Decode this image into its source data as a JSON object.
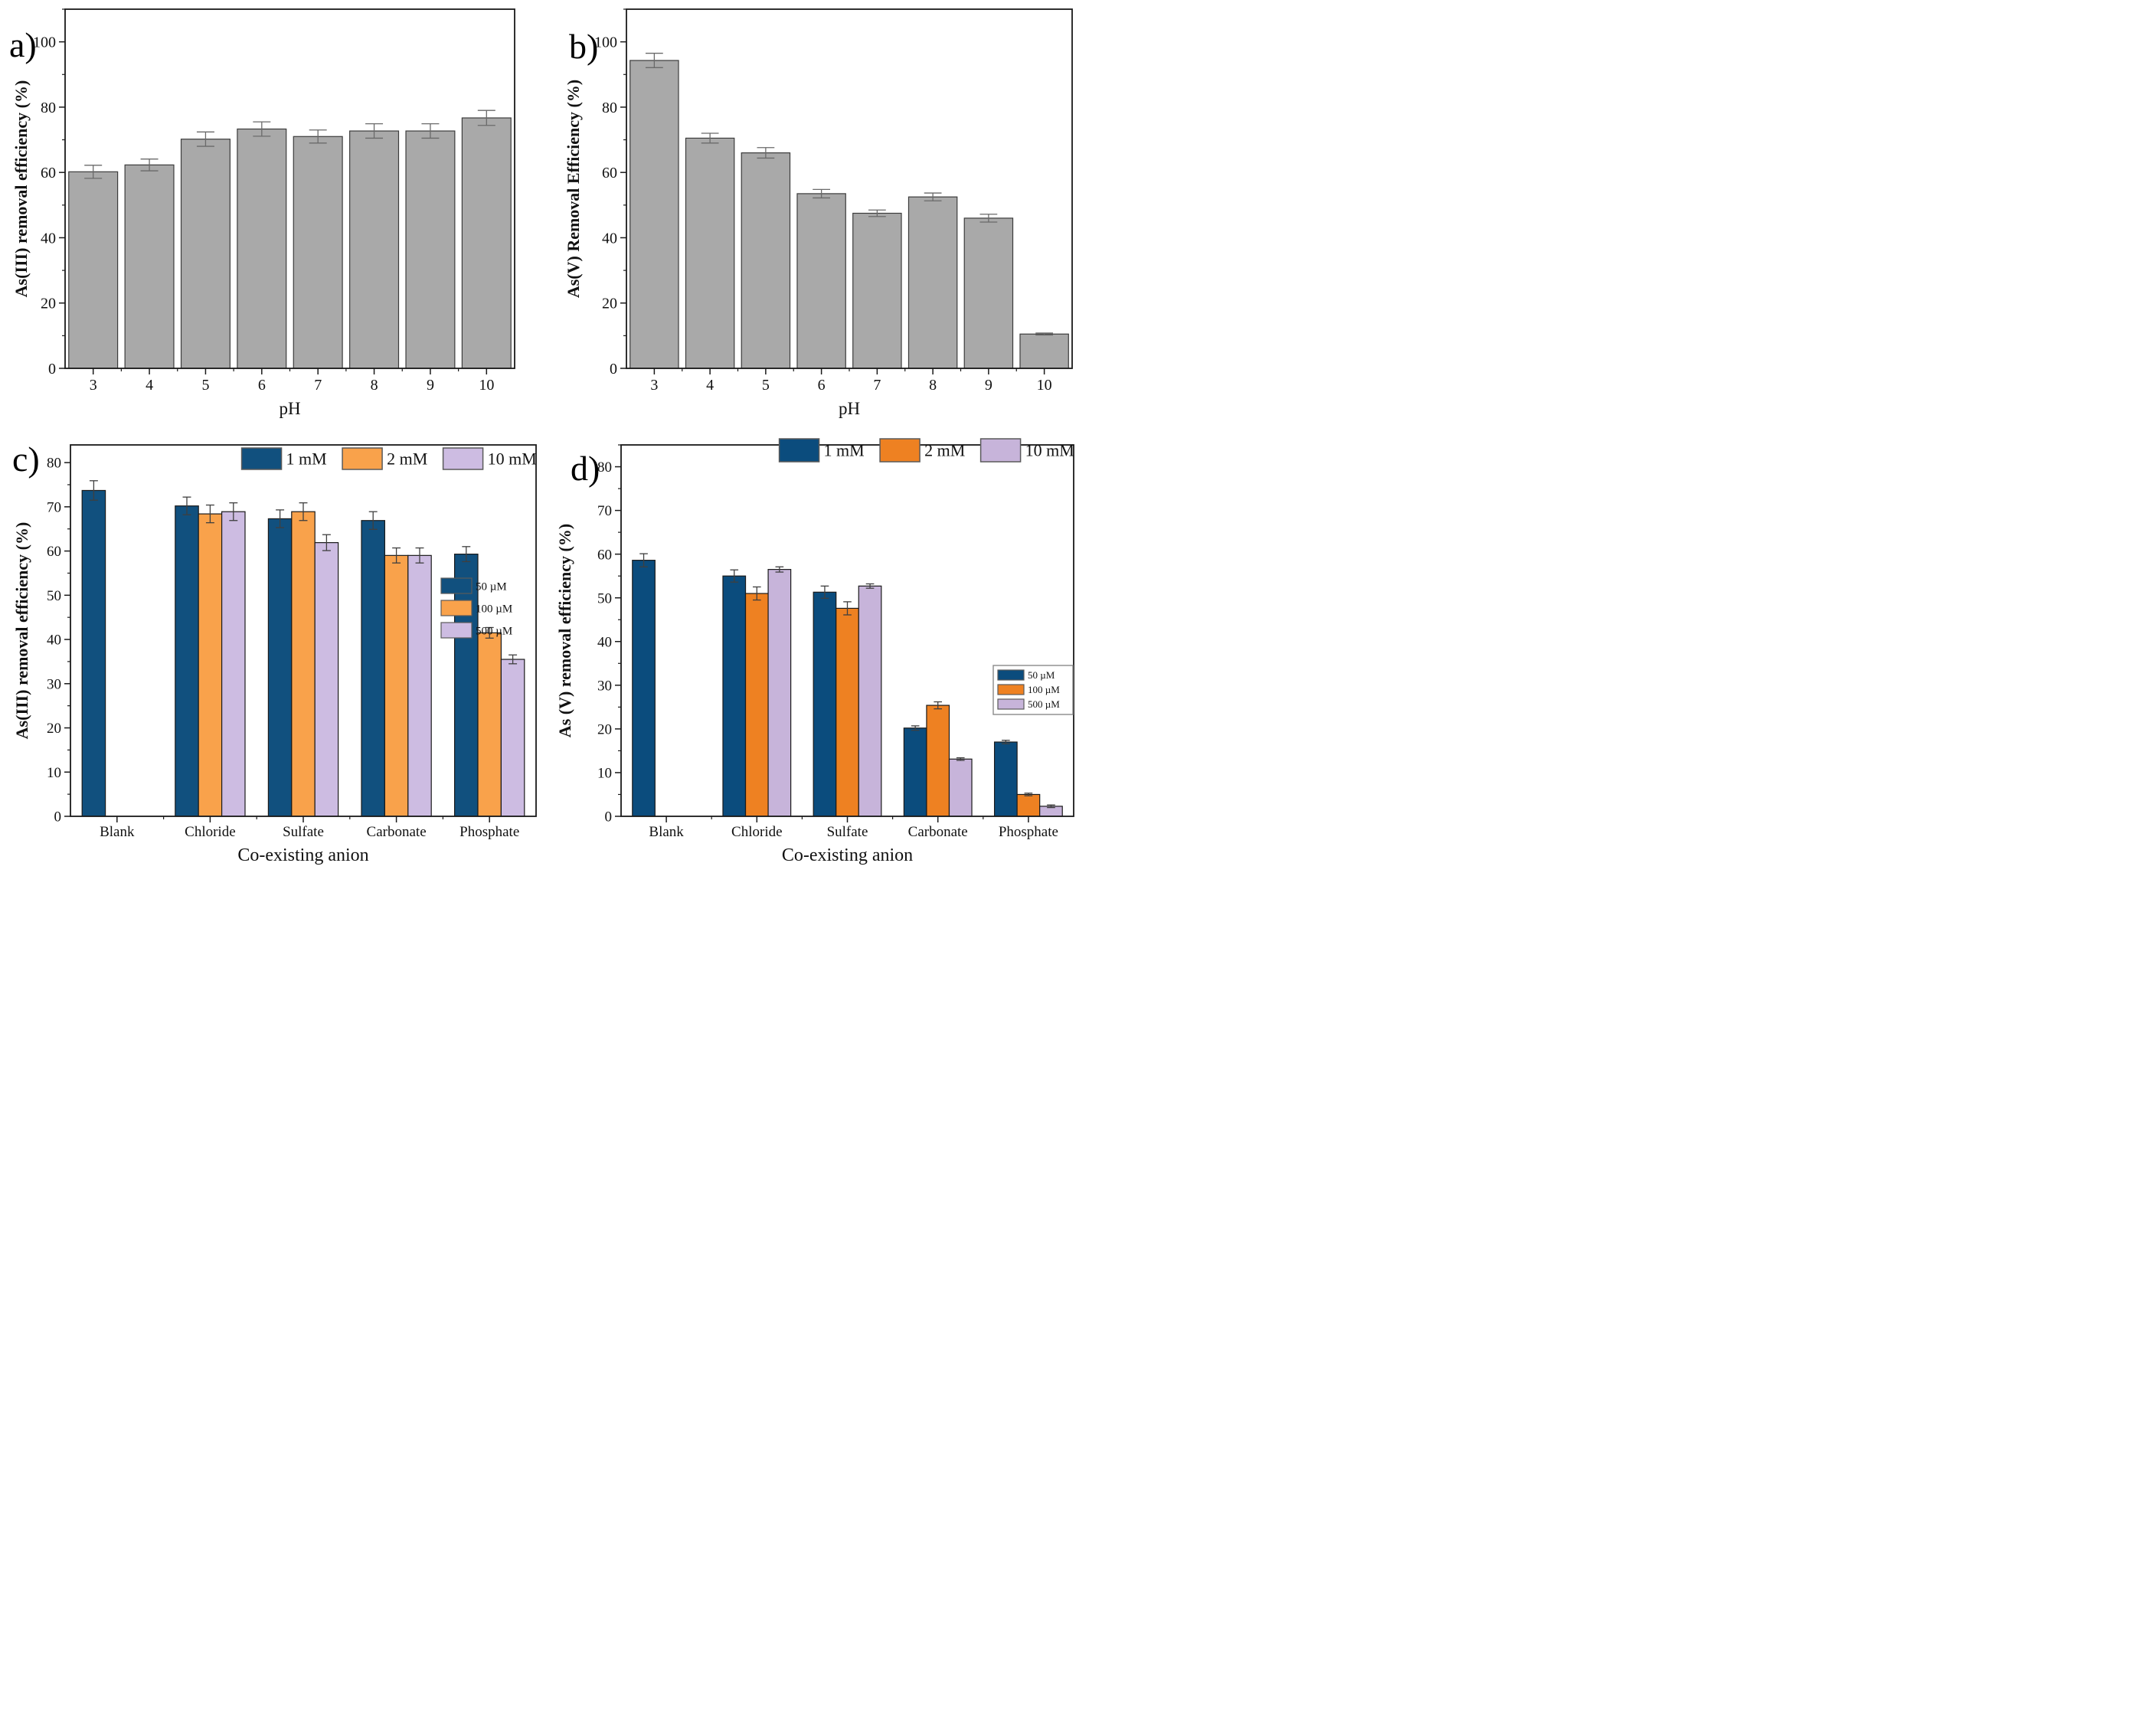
{
  "figure": {
    "description": "Four-panel bar chart figure of arsenic removal efficiency",
    "panel_labels": [
      "a)",
      "b)",
      "c)",
      "d)"
    ]
  },
  "chart_data": [
    {
      "id": "a",
      "panel_label": "a)",
      "type": "bar",
      "categories": [
        "3",
        "4",
        "5",
        "6",
        "7",
        "8",
        "9",
        "10"
      ],
      "values": [
        60.2,
        62.3,
        70.2,
        73.3,
        71.0,
        72.7,
        72.7,
        76.7
      ],
      "errors": [
        2.0,
        1.8,
        2.2,
        2.2,
        2.0,
        2.2,
        2.2,
        2.3
      ],
      "title": "",
      "xlabel": "pH",
      "ylabel": "As(III) removal efficiency (%)",
      "ylim": [
        0,
        110
      ],
      "yticks": [
        0,
        20,
        40,
        60,
        80,
        100
      ],
      "ytick_step": 20,
      "yminor_step": 10,
      "grid": false,
      "bar_color": "#a9a9a9",
      "bar_edge": "#3c3c3c",
      "error_color": "#6a6a6a",
      "legend": null
    },
    {
      "id": "b",
      "panel_label": "b)",
      "type": "bar",
      "categories": [
        "3",
        "4",
        "5",
        "6",
        "7",
        "8",
        "9",
        "10"
      ],
      "values": [
        94.3,
        70.5,
        66.0,
        53.5,
        47.5,
        52.5,
        46.0,
        10.5
      ],
      "errors": [
        2.2,
        1.5,
        1.6,
        1.3,
        1.0,
        1.2,
        1.2,
        0.3
      ],
      "title": "",
      "xlabel": "pH",
      "ylabel": "As(V) Removal Efficiency (%)",
      "ylim": [
        0,
        110
      ],
      "yticks": [
        0,
        20,
        40,
        60,
        80,
        100
      ],
      "ytick_step": 20,
      "yminor_step": 10,
      "grid": false,
      "bar_color": "#a9a9a9",
      "bar_edge": "#3c3c3c",
      "error_color": "#6a6a6a",
      "legend": null
    },
    {
      "id": "c",
      "panel_label": "c)",
      "type": "grouped-bar",
      "categories": [
        "Blank",
        "Chloride",
        "Sulfate",
        "Carbonate",
        "Phosphate"
      ],
      "series": [
        {
          "name": "1 mM",
          "color": "#11507e",
          "values": [
            73.7,
            70.2,
            67.3,
            66.9,
            59.3
          ],
          "errors": [
            2.2,
            2.0,
            2.0,
            2.0,
            1.7
          ]
        },
        {
          "name": "2 mM",
          "color": "#f9a24b",
          "values": [
            null,
            68.4,
            68.9,
            59.0,
            41.5
          ],
          "errors": [
            null,
            2.0,
            2.0,
            1.7,
            1.2
          ]
        },
        {
          "name": "10 mM",
          "color": "#cdbce2",
          "values": [
            null,
            68.9,
            61.9,
            59.0,
            35.5
          ],
          "errors": [
            null,
            2.0,
            1.8,
            1.7,
            1.0
          ]
        }
      ],
      "title": "",
      "xlabel": "Co-existing anion",
      "ylabel": "As(III) removal efficiency (%)",
      "ylim": [
        0,
        84
      ],
      "yticks": [
        0,
        10,
        20,
        30,
        40,
        50,
        60,
        70,
        80
      ],
      "ytick_step": 10,
      "yminor_step": 5,
      "grid": false,
      "bar_edge": "#1a1a1a",
      "error_color": "#3f3f3f",
      "legend": {
        "position": "top",
        "labels": [
          "1 mM",
          "2 mM",
          "10 mM"
        ]
      },
      "legend2": {
        "boxed": false,
        "labels": [
          "50 µM",
          "100 µM",
          "500 µM"
        ]
      }
    },
    {
      "id": "d",
      "panel_label": "d)",
      "type": "grouped-bar",
      "categories": [
        "Blank",
        "Chloride",
        "Sulfate",
        "Carbonate",
        "Phosphate"
      ],
      "series": [
        {
          "name": "1 mM",
          "color": "#0b4c7d",
          "values": [
            58.6,
            55.0,
            51.3,
            20.2,
            17.0
          ],
          "errors": [
            1.5,
            1.4,
            1.4,
            0.5,
            0.4
          ]
        },
        {
          "name": "2 mM",
          "color": "#ee8122",
          "values": [
            null,
            51.0,
            47.6,
            25.4,
            5.0
          ],
          "errors": [
            null,
            1.5,
            1.5,
            0.8,
            0.3
          ]
        },
        {
          "name": "10 mM",
          "color": "#c7b4da",
          "values": [
            null,
            56.5,
            52.7,
            13.1,
            2.3
          ],
          "errors": [
            null,
            0.6,
            0.5,
            0.3,
            0.3
          ]
        }
      ],
      "title": "",
      "xlabel": "Co-existing anion",
      "ylabel": "As (V) removal efficiency (%)",
      "ylim": [
        0,
        85
      ],
      "yticks": [
        0,
        10,
        20,
        30,
        40,
        50,
        60,
        70,
        80
      ],
      "ytick_step": 10,
      "yminor_step": 5,
      "grid": false,
      "bar_edge": "#1a1a1a",
      "error_color": "#3f3f3f",
      "legend": {
        "position": "top",
        "labels": [
          "1 mM",
          "2 mM",
          "10 mM"
        ]
      },
      "legend2": {
        "boxed": true,
        "labels": [
          "50 µM",
          "100 µM",
          "500 µM"
        ]
      }
    }
  ]
}
